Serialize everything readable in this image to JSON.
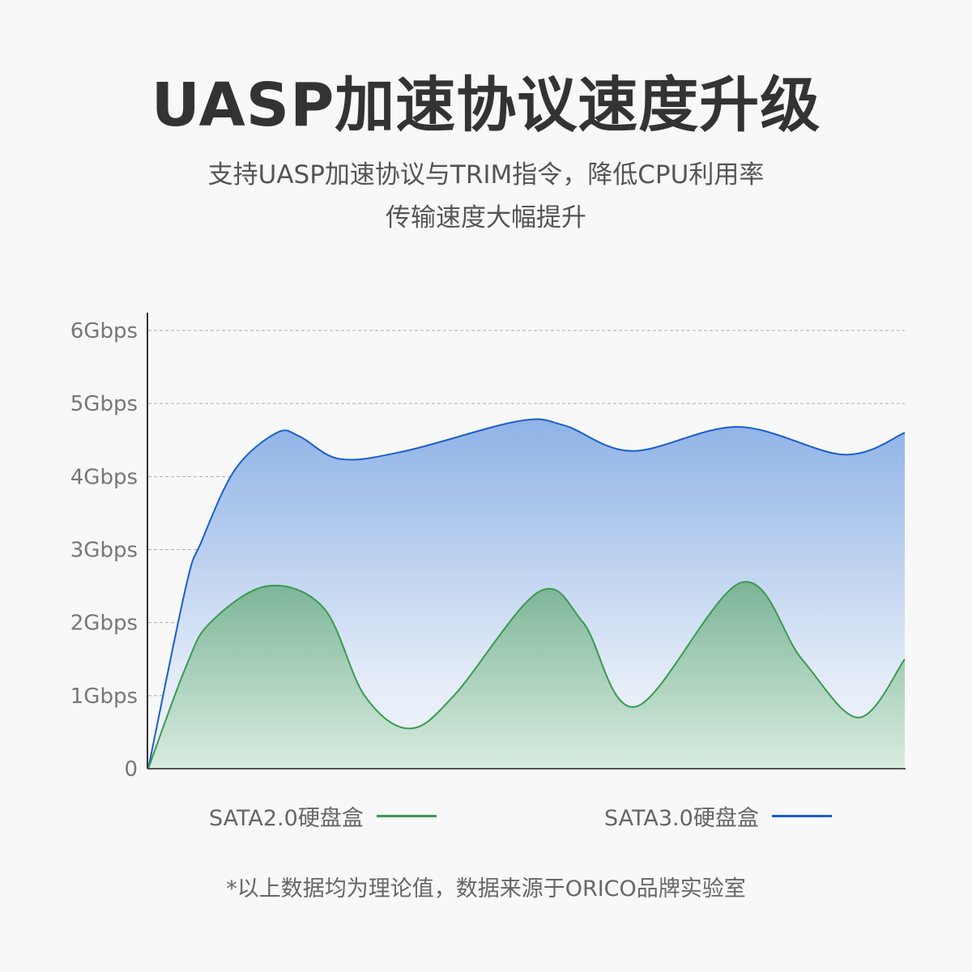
{
  "header": {
    "title": "UASP加速协议速度升级",
    "subtitle_line1": "支持UASP加速协议与TRIM指令，降低CPU利用率",
    "subtitle_line2": "传输速度大幅提升"
  },
  "footer": {
    "note": "*以上数据均为理论值，数据来源于ORICO品牌实验室"
  },
  "chart_data": {
    "type": "area",
    "title": "",
    "xlabel": "",
    "ylabel": "",
    "ylim": [
      0,
      6
    ],
    "xlim": [
      0,
      100
    ],
    "grid": true,
    "legend_placement": "bottom",
    "y_ticks": [
      "0",
      "1Gbps",
      "2Gbps",
      "3Gbps",
      "4Gbps",
      "5Gbps",
      "6Gbps"
    ],
    "series": [
      {
        "name": "SATA3.0硬盘盒",
        "color": "#1a5fcc",
        "fill": "#8fb3e6",
        "points": [
          [
            0,
            0
          ],
          [
            5,
            2.5
          ],
          [
            7,
            3.1
          ],
          [
            11.5,
            4.1
          ],
          [
            17,
            4.6
          ],
          [
            20,
            4.55
          ],
          [
            25.4,
            4.24
          ],
          [
            34,
            4.35
          ],
          [
            49,
            4.76
          ],
          [
            55,
            4.7
          ],
          [
            64,
            4.35
          ],
          [
            78,
            4.68
          ],
          [
            92,
            4.3
          ],
          [
            100,
            4.6
          ]
        ]
      },
      {
        "name": "SATA2.0硬盘盒",
        "color": "#3a9a4e",
        "fill": "#7fb894",
        "points": [
          [
            0,
            0
          ],
          [
            5,
            1.4
          ],
          [
            8.2,
            2.0
          ],
          [
            15.7,
            2.5
          ],
          [
            23.2,
            2.2
          ],
          [
            28.6,
            1.0
          ],
          [
            34.5,
            0.55
          ],
          [
            40.4,
            1.0
          ],
          [
            51.6,
            2.42
          ],
          [
            57.5,
            2.0
          ],
          [
            64.5,
            0.85
          ],
          [
            78.4,
            2.55
          ],
          [
            86.4,
            1.5
          ],
          [
            93.9,
            0.7
          ],
          [
            100,
            1.5
          ]
        ]
      }
    ]
  }
}
